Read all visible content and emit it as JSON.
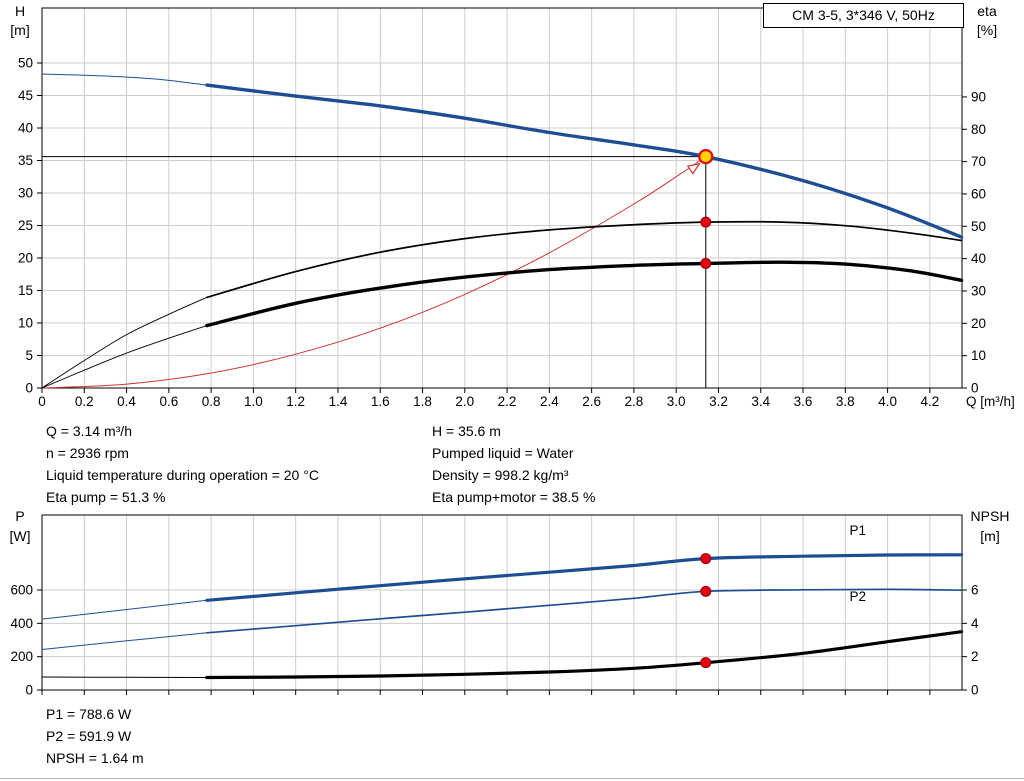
{
  "colors": {
    "grid": "#cdcdcd",
    "axis": "#000000",
    "curve_blue": "#1d4e94",
    "curve_black": "#000000",
    "curve_red": "#cc3333",
    "dot_red": "#e60012",
    "dot_edge": "#8f0000",
    "duty_yellow": "#ffd400",
    "label_blue": "#1d4e94"
  },
  "title_box": "CM 3-5, 3*346 V, 50Hz",
  "info_top_left": {
    "0": "Q = 3.14 m³/h",
    "1": "n = 2936 rpm",
    "2": "Liquid temperature during operation = 20 °C",
    "3": "Eta pump = 51.3 %"
  },
  "info_top_right": {
    "0": "H = 35.6 m",
    "1": "Pumped liquid = Water",
    "2": "Density = 998.2 kg/m³",
    "3": "Eta pump+motor = 38.5 %"
  },
  "info_bottom": {
    "0": "P1 = 788.6 W",
    "1": "P2 = 591.9 W",
    "2": "NPSH = 1.64 m"
  },
  "chart_data": [
    {
      "type": "line",
      "title": "CM 3-5, 3*346 V, 50Hz",
      "duty_point": {
        "Q": 3.14,
        "H": 35.6,
        "eta_pump": 51.3,
        "eta_pump_motor": 38.5
      },
      "axes": {
        "x": {
          "title": "Q [m³/h]",
          "min": 0,
          "max": 4.352,
          "tick_labels": [
            "0",
            "0.2",
            "0.4",
            "0.6",
            "0.8",
            "1.0",
            "1.2",
            "1.4",
            "1.6",
            "1.8",
            "2.0",
            "2.2",
            "2.4",
            "2.6",
            "2.8",
            "3.0",
            "3.2",
            "3.4",
            "3.6",
            "3.8",
            "4.0",
            "4.2"
          ]
        },
        "left": {
          "title_lines": [
            "H",
            "[m]"
          ],
          "min": 0,
          "max": 58.46,
          "tick_labels": [
            "0",
            "5",
            "10",
            "15",
            "20",
            "25",
            "30",
            "35",
            "40",
            "45",
            "50"
          ]
        },
        "right": {
          "title_lines": [
            "eta",
            "[%]"
          ],
          "min": 0,
          "max": 117.5,
          "tick_labels": [
            "0",
            "10",
            "20",
            "30",
            "40",
            "50",
            "60",
            "70",
            "80",
            "90"
          ]
        }
      },
      "series": [
        {
          "name": "duty-hline",
          "axis": "left",
          "color": "curve_black",
          "width": 1,
          "straight": true,
          "points": [
            [
              0,
              35.6
            ],
            [
              3.14,
              35.6
            ]
          ]
        },
        {
          "name": "duty-vline",
          "axis": "left",
          "color": "curve_black",
          "width": 1,
          "straight": true,
          "points": [
            [
              3.14,
              35.6
            ],
            [
              3.14,
              0
            ]
          ]
        },
        {
          "name": "system-curve",
          "axis": "left",
          "color": "curve_red",
          "width": 1,
          "points": [
            [
              0,
              0
            ],
            [
              0.4,
              0.6
            ],
            [
              0.8,
              2.3
            ],
            [
              1.2,
              5.2
            ],
            [
              1.6,
              9.2
            ],
            [
              2.0,
              14.4
            ],
            [
              2.4,
              20.8
            ],
            [
              2.8,
              28.3
            ],
            [
              3.0,
              32.5
            ],
            [
              3.14,
              35.6
            ]
          ]
        },
        {
          "name": "eta-pump-leadin",
          "axis": "right",
          "color": "curve_black",
          "width": 0.9,
          "points": [
            [
              0,
              0
            ],
            [
              0.2,
              8.5
            ],
            [
              0.4,
              16.5
            ],
            [
              0.6,
              22.8
            ],
            [
              0.78,
              28
            ]
          ]
        },
        {
          "name": "eta-pump-curve",
          "axis": "right",
          "color": "curve_black",
          "width": 1.7,
          "points": [
            [
              0.78,
              28
            ],
            [
              1.2,
              36
            ],
            [
              1.6,
              42
            ],
            [
              2.0,
              46.2
            ],
            [
              2.4,
              48.9
            ],
            [
              2.8,
              50.5
            ],
            [
              3.14,
              51.3
            ],
            [
              3.5,
              51.3
            ],
            [
              3.8,
              50.2
            ],
            [
              4.1,
              48
            ],
            [
              4.35,
              45.6
            ]
          ]
        },
        {
          "name": "eta-pump-motor-leadin",
          "axis": "right",
          "color": "curve_black",
          "width": 0.9,
          "points": [
            [
              0,
              0
            ],
            [
              0.2,
              5.5
            ],
            [
              0.4,
              10.8
            ],
            [
              0.6,
              15.4
            ],
            [
              0.78,
              19.3
            ]
          ]
        },
        {
          "name": "eta-pump-motor-curve",
          "axis": "right",
          "color": "curve_black",
          "width": 3.4,
          "points": [
            [
              0.78,
              19.3
            ],
            [
              1.2,
              26.2
            ],
            [
              1.6,
              30.9
            ],
            [
              2.0,
              34.3
            ],
            [
              2.4,
              36.6
            ],
            [
              2.8,
              37.9
            ],
            [
              3.14,
              38.5
            ],
            [
              3.5,
              38.9
            ],
            [
              3.8,
              38.3
            ],
            [
              4.1,
              36.3
            ],
            [
              4.35,
              33.3
            ]
          ]
        },
        {
          "name": "head-curve-leadin",
          "axis": "left",
          "color": "curve_blue",
          "width": 1,
          "points": [
            [
              0,
              48.3
            ],
            [
              0.3,
              48.0
            ],
            [
              0.55,
              47.5
            ],
            [
              0.78,
              46.6
            ]
          ]
        },
        {
          "name": "head-curve",
          "axis": "left",
          "color": "curve_blue",
          "width": 3.4,
          "points": [
            [
              0.78,
              46.6
            ],
            [
              1.2,
              44.9
            ],
            [
              1.6,
              43.4
            ],
            [
              2.0,
              41.5
            ],
            [
              2.4,
              39.3
            ],
            [
              2.8,
              37.4
            ],
            [
              3.14,
              35.6
            ],
            [
              3.6,
              31.9
            ],
            [
              4.0,
              27.7
            ],
            [
              4.35,
              23.2
            ]
          ]
        }
      ],
      "markers": [
        {
          "name": "system-curve-arrow",
          "style": "arrow",
          "axis": "left",
          "q": 3.11,
          "v": 34.5,
          "angle": -34
        },
        {
          "name": "eta-pump-point",
          "style": "dot",
          "axis": "right",
          "q": 3.14,
          "v": 51.3
        },
        {
          "name": "eta-pump-motor-point",
          "style": "dot",
          "axis": "right",
          "q": 3.14,
          "v": 38.5
        },
        {
          "name": "duty-point",
          "style": "duty",
          "axis": "left",
          "q": 3.14,
          "v": 35.6
        }
      ]
    },
    {
      "type": "line",
      "title": "",
      "duty_point": {
        "Q": 3.14,
        "P1_W": 788.6,
        "P2_W": 591.9,
        "NPSH_m": 1.64
      },
      "axes": {
        "x": {
          "title": "",
          "min": 0,
          "max": 4.352,
          "labels_visible": false,
          "tick_labels": [
            "0",
            "0.2",
            "0.4",
            "0.6",
            "0.8",
            "1.0",
            "1.2",
            "1.4",
            "1.6",
            "1.8",
            "2.0",
            "2.2",
            "2.4",
            "2.6",
            "2.8",
            "3.0",
            "3.2",
            "3.4",
            "3.6",
            "3.8",
            "4.0",
            "4.2"
          ]
        },
        "left": {
          "title_lines": [
            "P",
            "[W]"
          ],
          "min": 0,
          "max": 1050,
          "tick_labels": [
            "0",
            "200",
            "400",
            "600"
          ]
        },
        "right": {
          "title_lines": [
            "NPSH",
            "[m]"
          ],
          "min": 0,
          "max": 10.5,
          "tick_labels": [
            "0",
            "2",
            "4",
            "6"
          ]
        }
      },
      "series": [
        {
          "name": "p1-leadin",
          "axis": "left",
          "color": "curve_blue",
          "width": 1,
          "points": [
            [
              0,
              425
            ],
            [
              0.4,
              483
            ],
            [
              0.78,
              538
            ]
          ]
        },
        {
          "name": "p1-curve",
          "axis": "left",
          "color": "curve_blue",
          "width": 3.2,
          "points": [
            [
              0.78,
              538
            ],
            [
              1.2,
              583
            ],
            [
              1.6,
              626
            ],
            [
              2.0,
              667
            ],
            [
              2.4,
              707
            ],
            [
              2.8,
              747
            ],
            [
              3.14,
              788.6
            ],
            [
              3.6,
              803
            ],
            [
              4.0,
              810
            ],
            [
              4.35,
              811
            ]
          ]
        },
        {
          "name": "p2-leadin",
          "axis": "left",
          "color": "curve_blue",
          "width": 1,
          "points": [
            [
              0,
              243
            ],
            [
              0.4,
              295
            ],
            [
              0.78,
              343
            ]
          ]
        },
        {
          "name": "p2-curve",
          "axis": "left",
          "color": "curve_blue",
          "width": 1.7,
          "points": [
            [
              0.78,
              343
            ],
            [
              1.2,
              386
            ],
            [
              1.6,
              427
            ],
            [
              2.0,
              467
            ],
            [
              2.4,
              508
            ],
            [
              2.8,
              550
            ],
            [
              3.14,
              591.9
            ],
            [
              3.6,
              601
            ],
            [
              4.0,
              604
            ],
            [
              4.35,
              599
            ]
          ]
        },
        {
          "name": "npsh-leadin",
          "axis": "right",
          "color": "curve_black",
          "width": 1,
          "points": [
            [
              0,
              0.78
            ],
            [
              0.4,
              0.76
            ],
            [
              0.78,
              0.75
            ]
          ]
        },
        {
          "name": "npsh-curve",
          "axis": "right",
          "color": "curve_black",
          "width": 3.2,
          "points": [
            [
              0.78,
              0.75
            ],
            [
              1.2,
              0.78
            ],
            [
              1.6,
              0.84
            ],
            [
              2.0,
              0.94
            ],
            [
              2.4,
              1.08
            ],
            [
              2.8,
              1.3
            ],
            [
              3.14,
              1.64
            ],
            [
              3.6,
              2.2
            ],
            [
              4.0,
              2.9
            ],
            [
              4.35,
              3.5
            ]
          ]
        }
      ],
      "markers": [
        {
          "name": "p1-point",
          "style": "dot",
          "axis": "left",
          "q": 3.14,
          "v": 788.6
        },
        {
          "name": "p2-point",
          "style": "dot",
          "axis": "left",
          "q": 3.14,
          "v": 591.9
        },
        {
          "name": "npsh-point",
          "style": "dot",
          "axis": "right",
          "q": 3.14,
          "v": 1.64
        }
      ],
      "labels": [
        {
          "name": "p1-curve-label",
          "text": "P1",
          "axis": "left",
          "q": 3.82,
          "v": 930,
          "color": "label_blue"
        },
        {
          "name": "p2-curve-label",
          "text": "P2",
          "axis": "left",
          "q": 3.82,
          "v": 535,
          "color": "label_blue"
        }
      ]
    }
  ]
}
